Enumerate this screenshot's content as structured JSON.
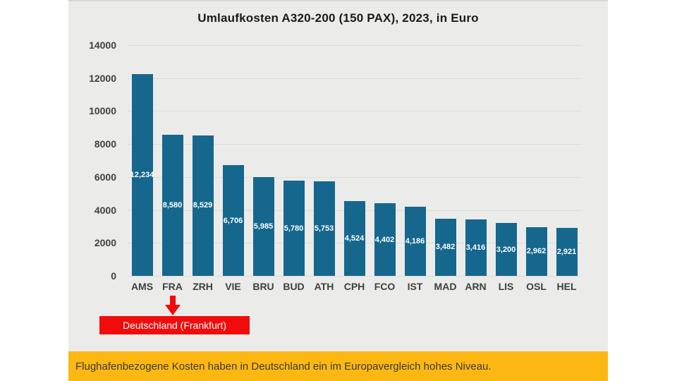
{
  "chart_data": {
    "type": "bar",
    "title": "Umlaufkosten A320-200 (150 PAX), 2023, in Euro",
    "categories": [
      "AMS",
      "FRA",
      "ZRH",
      "VIE",
      "BRU",
      "BUD",
      "ATH",
      "CPH",
      "FCO",
      "IST",
      "MAD",
      "ARN",
      "LIS",
      "OSL",
      "HEL"
    ],
    "values": [
      12234,
      8580,
      8529,
      6706,
      5985,
      5780,
      5753,
      4524,
      4402,
      4186,
      3482,
      3416,
      3200,
      2962,
      2921
    ],
    "value_labels": [
      "12,234",
      "8,580",
      "8,529",
      "6,706",
      "5,985",
      "5,780",
      "5,753",
      "4,524",
      "4,402",
      "4,186",
      "3,482",
      "3,416",
      "3,200",
      "2,962",
      "2,921"
    ],
    "yticks": [
      0,
      2000,
      4000,
      6000,
      8000,
      10000,
      12000,
      14000
    ],
    "ylim": [
      0,
      14000
    ],
    "xlabel": "",
    "ylabel": "",
    "grid": true,
    "legend": false,
    "bar_color": "#15678d"
  },
  "annotation": {
    "label": "Deutschland (Frankfurt)",
    "target_category": "FRA",
    "arrow_direction": "down",
    "color": "#f10c0c"
  },
  "banner": {
    "text": "Flughafenbezogene Kosten haben in Deutschland ein im Europavergleich hohes Niveau.",
    "background": "#fcb712"
  }
}
